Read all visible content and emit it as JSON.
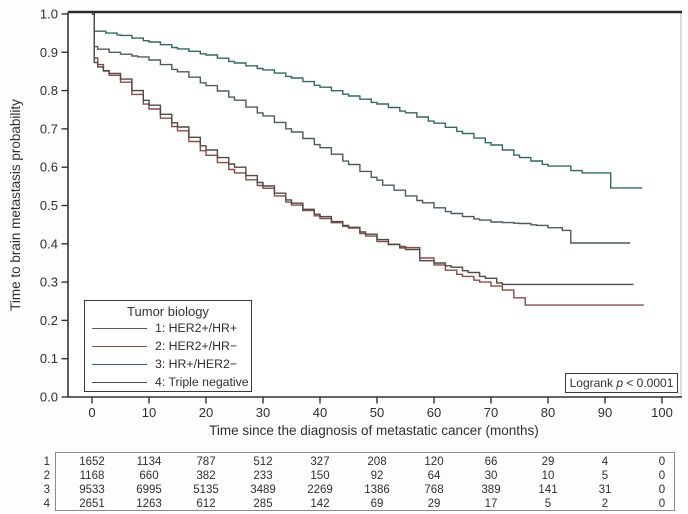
{
  "chart_data": {
    "type": "line",
    "subtype": "kaplan-meier-step",
    "title": "",
    "xlabel": "Time since the diagnosis of metastatic cancer (months)",
    "ylabel": "Time to brain metastasis probability",
    "xlim": [
      0,
      103
    ],
    "ylim": [
      0,
      1.0
    ],
    "grid": false,
    "x_ticks": [
      0,
      10,
      20,
      30,
      40,
      50,
      60,
      70,
      80,
      90,
      100
    ],
    "y_tick_labels": [
      "0.0",
      "0.1",
      "0.2",
      "0.3",
      "0.4",
      "0.5",
      "0.6",
      "0.7",
      "0.8",
      "0.9",
      "1.0"
    ],
    "legend_title": "Tumor biology",
    "legend_position": "bottom-left-inside",
    "annotation": {
      "prefix": "Logrank ",
      "p_symbol": "p",
      "suffix": " < 0.0001"
    },
    "series": [
      {
        "name": "1: HER2+/HR+",
        "color": "#4d5a68",
        "points": [
          [
            0,
            1.0
          ],
          [
            0.4,
            0.915
          ],
          [
            1,
            0.908
          ],
          [
            3,
            0.9
          ],
          [
            5,
            0.895
          ],
          [
            8,
            0.888
          ],
          [
            10,
            0.88
          ],
          [
            12,
            0.868
          ],
          [
            15,
            0.849
          ],
          [
            17,
            0.835
          ],
          [
            20,
            0.813
          ],
          [
            22,
            0.799
          ],
          [
            25,
            0.775
          ],
          [
            27,
            0.757
          ],
          [
            30,
            0.734
          ],
          [
            32,
            0.717
          ],
          [
            35,
            0.692
          ],
          [
            37,
            0.675
          ],
          [
            40,
            0.651
          ],
          [
            42,
            0.634
          ],
          [
            45,
            0.607
          ],
          [
            47,
            0.589
          ],
          [
            50,
            0.566
          ],
          [
            51,
            0.553
          ],
          [
            53,
            0.54
          ],
          [
            55,
            0.525
          ],
          [
            58,
            0.507
          ],
          [
            60,
            0.494
          ],
          [
            63,
            0.479
          ],
          [
            65,
            0.471
          ],
          [
            68,
            0.462
          ],
          [
            70,
            0.457
          ],
          [
            75,
            0.453
          ],
          [
            78,
            0.448
          ],
          [
            80,
            0.442
          ],
          [
            82.5,
            0.435
          ],
          [
            84,
            0.402
          ],
          [
            94.4,
            0.402
          ]
        ]
      },
      {
        "name": "2: HER2+/HR−",
        "color": "#8c4a44",
        "points": [
          [
            0,
            1.0
          ],
          [
            0.4,
            0.885
          ],
          [
            1,
            0.868
          ],
          [
            2,
            0.851
          ],
          [
            3,
            0.84
          ],
          [
            5,
            0.822
          ],
          [
            7,
            0.79
          ],
          [
            10,
            0.752
          ],
          [
            12,
            0.728
          ],
          [
            15,
            0.695
          ],
          [
            17,
            0.667
          ],
          [
            20,
            0.631
          ],
          [
            22,
            0.612
          ],
          [
            25,
            0.585
          ],
          [
            27,
            0.567
          ],
          [
            30,
            0.545
          ],
          [
            32,
            0.525
          ],
          [
            35,
            0.501
          ],
          [
            37,
            0.487
          ],
          [
            40,
            0.466
          ],
          [
            42,
            0.455
          ],
          [
            45,
            0.441
          ],
          [
            48,
            0.42
          ],
          [
            50,
            0.406
          ],
          [
            52,
            0.399
          ],
          [
            55,
            0.39
          ],
          [
            57.5,
            0.363
          ],
          [
            60,
            0.345
          ],
          [
            62,
            0.331
          ],
          [
            65,
            0.315
          ],
          [
            68,
            0.3
          ],
          [
            72,
            0.279
          ],
          [
            74,
            0.259
          ],
          [
            76,
            0.24
          ],
          [
            96.8,
            0.24
          ]
        ]
      },
      {
        "name": "3: HR+/HER2−",
        "color": "#2e6b62",
        "points": [
          [
            0,
            1.0
          ],
          [
            0.4,
            0.955
          ],
          [
            5,
            0.944
          ],
          [
            10,
            0.927
          ],
          [
            15,
            0.909
          ],
          [
            20,
            0.893
          ],
          [
            25,
            0.872
          ],
          [
            30,
            0.854
          ],
          [
            35,
            0.833
          ],
          [
            40,
            0.809
          ],
          [
            45,
            0.786
          ],
          [
            50,
            0.765
          ],
          [
            55,
            0.742
          ],
          [
            60,
            0.715
          ],
          [
            65,
            0.688
          ],
          [
            70,
            0.658
          ],
          [
            75,
            0.625
          ],
          [
            80,
            0.603
          ],
          [
            84,
            0.591
          ],
          [
            86,
            0.585
          ],
          [
            91,
            0.546
          ],
          [
            96.5,
            0.546
          ]
        ]
      },
      {
        "name": "4: Triple negative",
        "color": "#4f4a45",
        "points": [
          [
            0,
            1.0
          ],
          [
            0.4,
            0.873
          ],
          [
            1,
            0.862
          ],
          [
            2,
            0.852
          ],
          [
            3,
            0.845
          ],
          [
            5,
            0.83
          ],
          [
            7,
            0.8
          ],
          [
            10,
            0.762
          ],
          [
            12,
            0.738
          ],
          [
            15,
            0.705
          ],
          [
            17,
            0.678
          ],
          [
            20,
            0.645
          ],
          [
            22,
            0.625
          ],
          [
            25,
            0.6
          ],
          [
            27,
            0.578
          ],
          [
            30,
            0.551
          ],
          [
            32,
            0.532
          ],
          [
            35,
            0.506
          ],
          [
            37,
            0.49
          ],
          [
            40,
            0.471
          ],
          [
            42,
            0.458
          ],
          [
            45,
            0.443
          ],
          [
            48,
            0.425
          ],
          [
            50,
            0.411
          ],
          [
            52,
            0.398
          ],
          [
            55,
            0.385
          ],
          [
            57.5,
            0.356
          ],
          [
            60,
            0.35
          ],
          [
            63,
            0.339
          ],
          [
            66,
            0.325
          ],
          [
            69,
            0.31
          ],
          [
            71,
            0.298
          ],
          [
            72,
            0.294
          ],
          [
            95,
            0.294
          ]
        ]
      }
    ],
    "at_risk_table": {
      "row_labels": [
        "1",
        "2",
        "3",
        "4"
      ],
      "columns": [
        0,
        10,
        20,
        30,
        40,
        50,
        60,
        70,
        80,
        90,
        100
      ],
      "rows": [
        [
          1652,
          1134,
          787,
          512,
          327,
          208,
          120,
          66,
          29,
          4,
          0
        ],
        [
          1168,
          660,
          382,
          233,
          150,
          92,
          64,
          30,
          10,
          5,
          0
        ],
        [
          9533,
          6995,
          5135,
          3489,
          2269,
          1386,
          768,
          389,
          141,
          31,
          0
        ],
        [
          2651,
          1263,
          612,
          285,
          142,
          69,
          29,
          17,
          5,
          2,
          0
        ]
      ]
    }
  }
}
